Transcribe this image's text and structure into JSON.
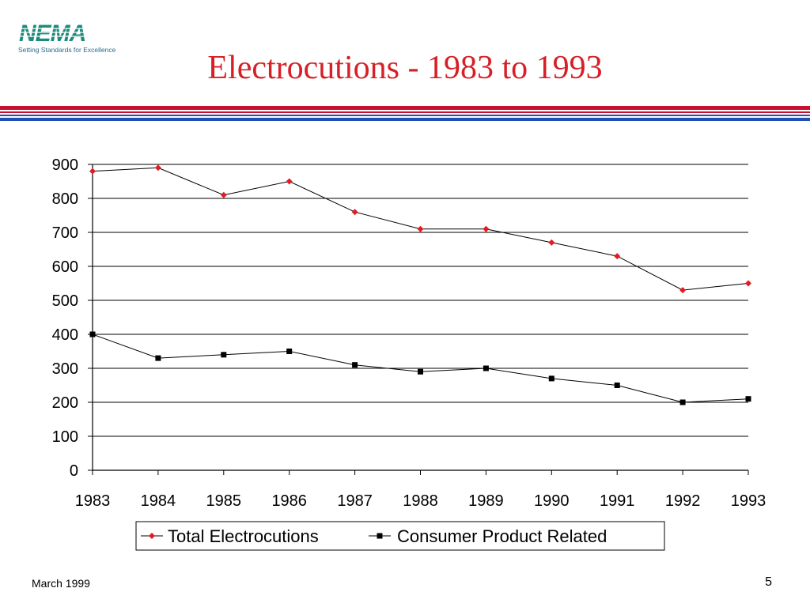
{
  "header": {
    "logo_text": "NEMA",
    "tagline": "Setting Standards for Excellence",
    "title": "Electrocutions - 1983 to 1993"
  },
  "footer": {
    "date": "March 1999",
    "page_number": "5"
  },
  "colors": {
    "title": "#d61f26",
    "logo": "#1a8a7a",
    "rule_red": "#c8102e",
    "rule_blue": "#1f4fb4",
    "total_marker": "#e31b23",
    "consumer_marker": "#000000"
  },
  "chart_data": {
    "type": "line",
    "categories": [
      "1983",
      "1984",
      "1985",
      "1986",
      "1987",
      "1988",
      "1989",
      "1990",
      "1991",
      "1992",
      "1993"
    ],
    "series": [
      {
        "name": "Total Electrocutions",
        "marker": "diamond",
        "values": [
          880,
          890,
          810,
          850,
          760,
          710,
          710,
          670,
          630,
          530,
          550
        ]
      },
      {
        "name": "Consumer Product Related",
        "marker": "square",
        "values": [
          400,
          330,
          340,
          350,
          310,
          290,
          300,
          270,
          250,
          200,
          210
        ]
      }
    ],
    "ylim": [
      0,
      900
    ],
    "yticks": [
      0,
      100,
      200,
      300,
      400,
      500,
      600,
      700,
      800,
      900
    ],
    "grid": true,
    "legend_position": "bottom"
  }
}
